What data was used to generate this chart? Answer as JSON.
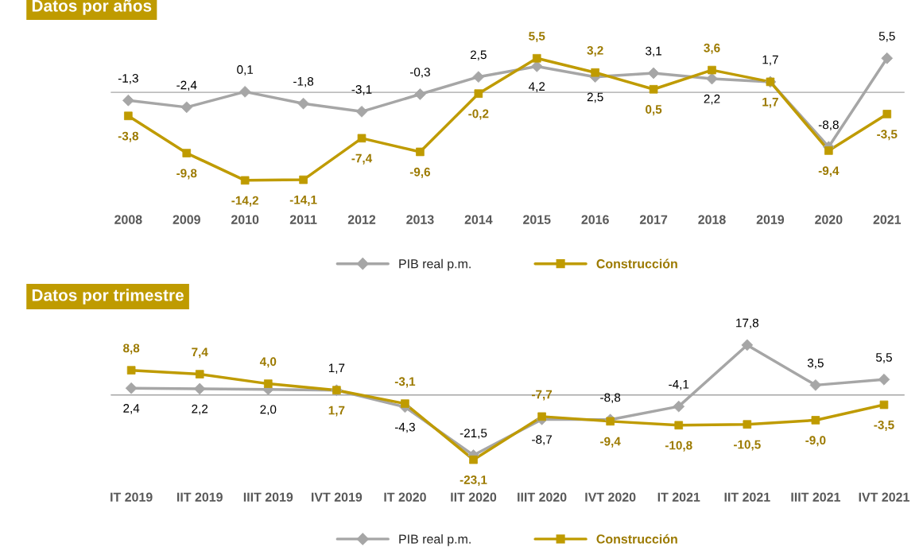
{
  "chart_data": [
    {
      "type": "line",
      "title": "Datos por años",
      "categories": [
        "2008",
        "2009",
        "2010",
        "2011",
        "2012",
        "2013",
        "2014",
        "2015",
        "2016",
        "2017",
        "2018",
        "2019",
        "2020",
        "2021"
      ],
      "tick_labels": "x",
      "grid": false,
      "legend": "bottom",
      "ref_lines": [
        {
          "axis": "y",
          "value": 0,
          "color": "#a6a6a6"
        }
      ],
      "series": [
        {
          "name": "PIB real p.m.",
          "color": "#a6a6a6",
          "marker": "diamond",
          "values": [
            -1.3,
            -2.4,
            0.1,
            -1.8,
            -3.1,
            -0.3,
            2.5,
            4.2,
            2.5,
            3.1,
            2.2,
            1.7,
            -8.8,
            5.5
          ],
          "value_labels": [
            "-1,3",
            "-2,4",
            "0,1",
            "-1,8",
            "-3,1",
            "-0,3",
            "2,5",
            "4,2",
            "2,5",
            "3,1",
            "2,2",
            "1,7",
            "-8,8",
            "5,5"
          ]
        },
        {
          "name": "Construcción",
          "color": "#bf9b00",
          "marker": "square",
          "values": [
            -3.8,
            -9.8,
            -14.2,
            -14.1,
            -7.4,
            -9.6,
            -0.2,
            5.5,
            3.2,
            0.5,
            3.6,
            1.7,
            -9.4,
            -3.5
          ],
          "value_labels": [
            "-3,8",
            "-9,8",
            "-14,2",
            "-14,1",
            "-7,4",
            "-9,6",
            "-0,2",
            "5,5",
            "3,2",
            "0,5",
            "3,6",
            "1,7",
            "-9,4",
            "-3,5"
          ]
        }
      ]
    },
    {
      "type": "line",
      "title": "Datos por trimestre",
      "categories": [
        "IT 2019",
        "IIT 2019",
        "IIIT 2019",
        "IVT 2019",
        "IT 2020",
        "IIT 2020",
        "IIIT 2020",
        "IVT 2020",
        "IT 2021",
        "IIT 2021",
        "IIIT 2021",
        "IVT 2021"
      ],
      "tick_labels": "x",
      "grid": false,
      "legend": "bottom",
      "ref_lines": [
        {
          "axis": "y",
          "value": 0,
          "color": "#a6a6a6"
        }
      ],
      "series": [
        {
          "name": "PIB real p.m.",
          "color": "#a6a6a6",
          "marker": "diamond",
          "values": [
            2.4,
            2.2,
            2.0,
            1.7,
            -4.3,
            -21.5,
            -8.7,
            -8.8,
            -4.1,
            17.8,
            3.5,
            5.5
          ],
          "value_labels": [
            "2,4",
            "2,2",
            "2,0",
            "1,7",
            "-4,3",
            "-21,5",
            "-8,7",
            "-8,8",
            "-4,1",
            "17,8",
            "3,5",
            "5,5"
          ]
        },
        {
          "name": "Construcción",
          "color": "#bf9b00",
          "marker": "square",
          "values": [
            8.8,
            7.4,
            4.0,
            1.7,
            -3.1,
            -23.1,
            -7.7,
            -9.4,
            -10.8,
            -10.5,
            -9.0,
            -3.5
          ],
          "value_labels": [
            "8,8",
            "7,4",
            "4,0",
            "1,7",
            "-3,1",
            "-23,1",
            "-7,7",
            "-9,4",
            "-10,8",
            "-10,5",
            "-9,0",
            "-3,5"
          ]
        }
      ]
    }
  ]
}
